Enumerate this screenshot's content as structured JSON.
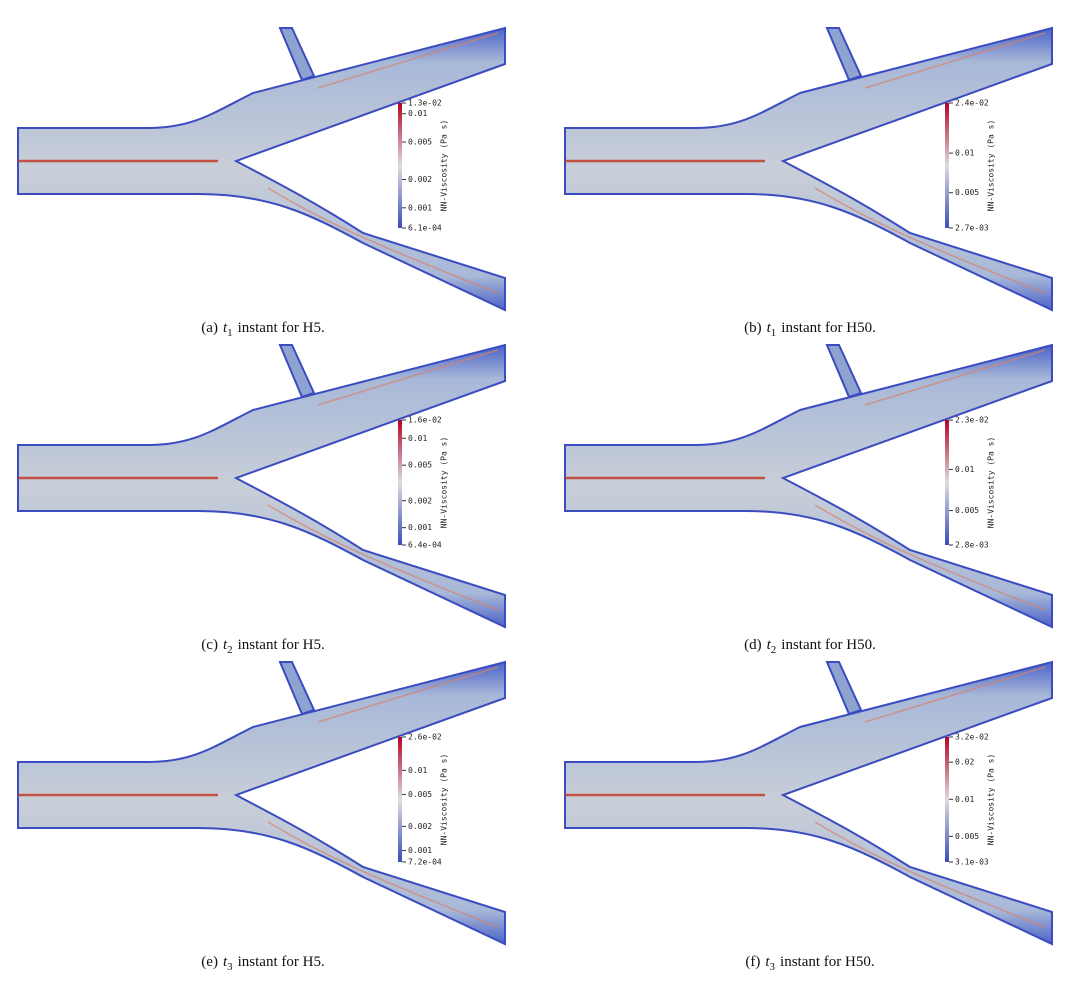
{
  "panels": [
    {
      "caption": {
        "label": "(a)",
        "var": "t",
        "sub": "1",
        "text": "instant for H5."
      },
      "colorbar": {
        "title": "NN-Viscosity (Pa s)",
        "scale": "log",
        "ticks": [
          {
            "value": 0.013,
            "label": "1.3e-02"
          },
          0.01,
          0.005,
          0.002,
          0.001,
          {
            "value": 0.00061,
            "label": "6.1e-04"
          }
        ]
      }
    },
    {
      "caption": {
        "label": "(b)",
        "var": "t",
        "sub": "1",
        "text": "instant for H50."
      },
      "colorbar": {
        "title": "NN-Viscosity (Pa s)",
        "scale": "log",
        "ticks": [
          {
            "value": 0.024,
            "label": "2.4e-02"
          },
          0.01,
          0.005,
          {
            "value": 0.0027,
            "label": "2.7e-03"
          }
        ]
      }
    },
    {
      "caption": {
        "label": "(c)",
        "var": "t",
        "sub": "2",
        "text": "instant for H5."
      },
      "colorbar": {
        "title": "NN-Viscosity (Pa s)",
        "scale": "log",
        "ticks": [
          {
            "value": 0.016,
            "label": "1.6e-02"
          },
          0.01,
          0.005,
          0.002,
          0.001,
          {
            "value": 0.00064,
            "label": "6.4e-04"
          }
        ]
      }
    },
    {
      "caption": {
        "label": "(d)",
        "var": "t",
        "sub": "2",
        "text": "instant for H50."
      },
      "colorbar": {
        "title": "NN-Viscosity (Pa s)",
        "scale": "log",
        "ticks": [
          {
            "value": 0.023,
            "label": "2.3e-02"
          },
          0.01,
          0.005,
          {
            "value": 0.0028,
            "label": "2.8e-03"
          }
        ]
      }
    },
    {
      "caption": {
        "label": "(e)",
        "var": "t",
        "sub": "3",
        "text": "instant for H5."
      },
      "colorbar": {
        "title": "NN-Viscosity (Pa s)",
        "scale": "log",
        "ticks": [
          {
            "value": 0.026,
            "label": "2.6e-02"
          },
          0.01,
          0.005,
          0.002,
          0.001,
          {
            "value": 0.00072,
            "label": "7.2e-04"
          }
        ]
      }
    },
    {
      "caption": {
        "label": "(f)",
        "var": "t",
        "sub": "3",
        "text": "instant for H50."
      },
      "colorbar": {
        "title": "NN-Viscosity (Pa s)",
        "scale": "log",
        "ticks": [
          {
            "value": 0.032,
            "label": "3.2e-02"
          },
          0.02,
          0.01,
          0.005,
          {
            "value": 0.0031,
            "label": "3.1e-03"
          }
        ]
      }
    }
  ]
}
